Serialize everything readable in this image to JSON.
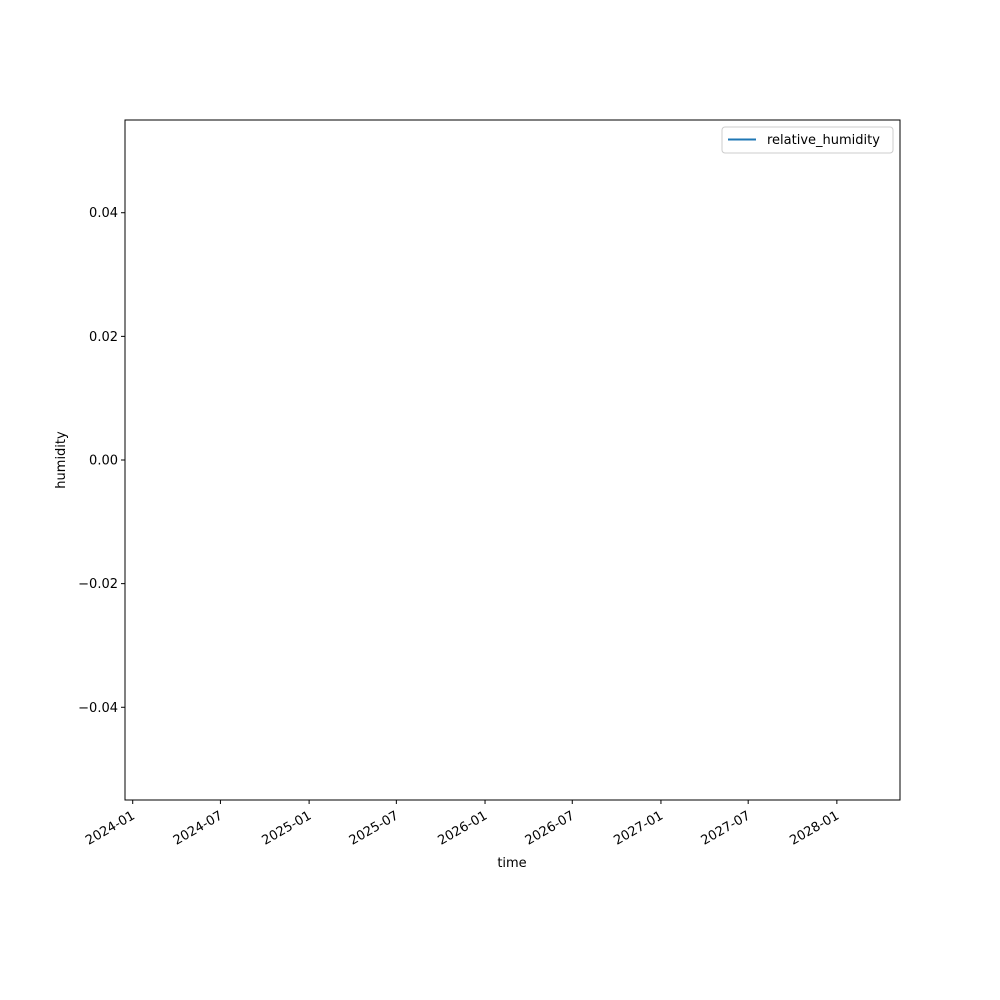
{
  "chart_data": {
    "type": "line",
    "title": "",
    "xlabel": "time",
    "ylabel": "humidity",
    "x_type": "date",
    "xlim": [
      "2023-12-16",
      "2028-05-11"
    ],
    "ylim": [
      -0.055,
      0.055
    ],
    "x_ticks": [
      "2024-01",
      "2024-07",
      "2025-01",
      "2025-07",
      "2026-01",
      "2026-07",
      "2027-01",
      "2027-07",
      "2028-01"
    ],
    "y_ticks": [
      -0.04,
      -0.02,
      0.0,
      0.02,
      0.04
    ],
    "y_tick_labels": [
      "−0.04",
      "−0.02",
      "0.00",
      "0.02",
      "0.04"
    ],
    "grid": false,
    "legend_position": "top-right",
    "series": [
      {
        "name": "relative_humidity",
        "color": "#1f77b4",
        "x": [],
        "y": []
      }
    ]
  }
}
